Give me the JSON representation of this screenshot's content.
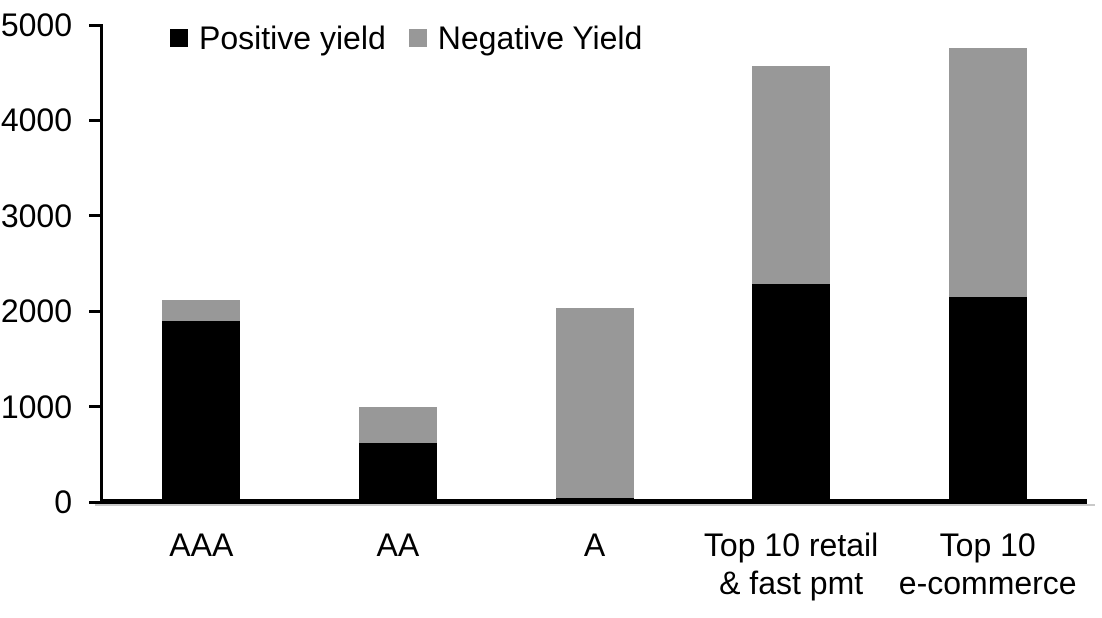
{
  "chart_data": {
    "type": "bar",
    "stacked": true,
    "categories": [
      "AAA",
      "AA",
      "A",
      "Top 10 retail\n& fast pmt",
      "Top 10\ne-commerce"
    ],
    "series": [
      {
        "name": "Positive yield",
        "color": "#000000",
        "values": [
          1900,
          620,
          40,
          2290,
          2150
        ]
      },
      {
        "name": "Negative Yield",
        "color": "#989898",
        "values": [
          220,
          380,
          1990,
          2280,
          2610
        ]
      }
    ],
    "totals": [
      2120,
      1000,
      2030,
      4570,
      4760
    ],
    "ylim": [
      0,
      5000
    ],
    "yticks": [
      "0",
      "1000",
      "2000",
      "3000",
      "4000",
      "5000"
    ],
    "xlabel": "",
    "ylabel": "",
    "grid": false,
    "legend_position": "top",
    "axis_color": "#000000",
    "background_color": "#ffffff"
  }
}
